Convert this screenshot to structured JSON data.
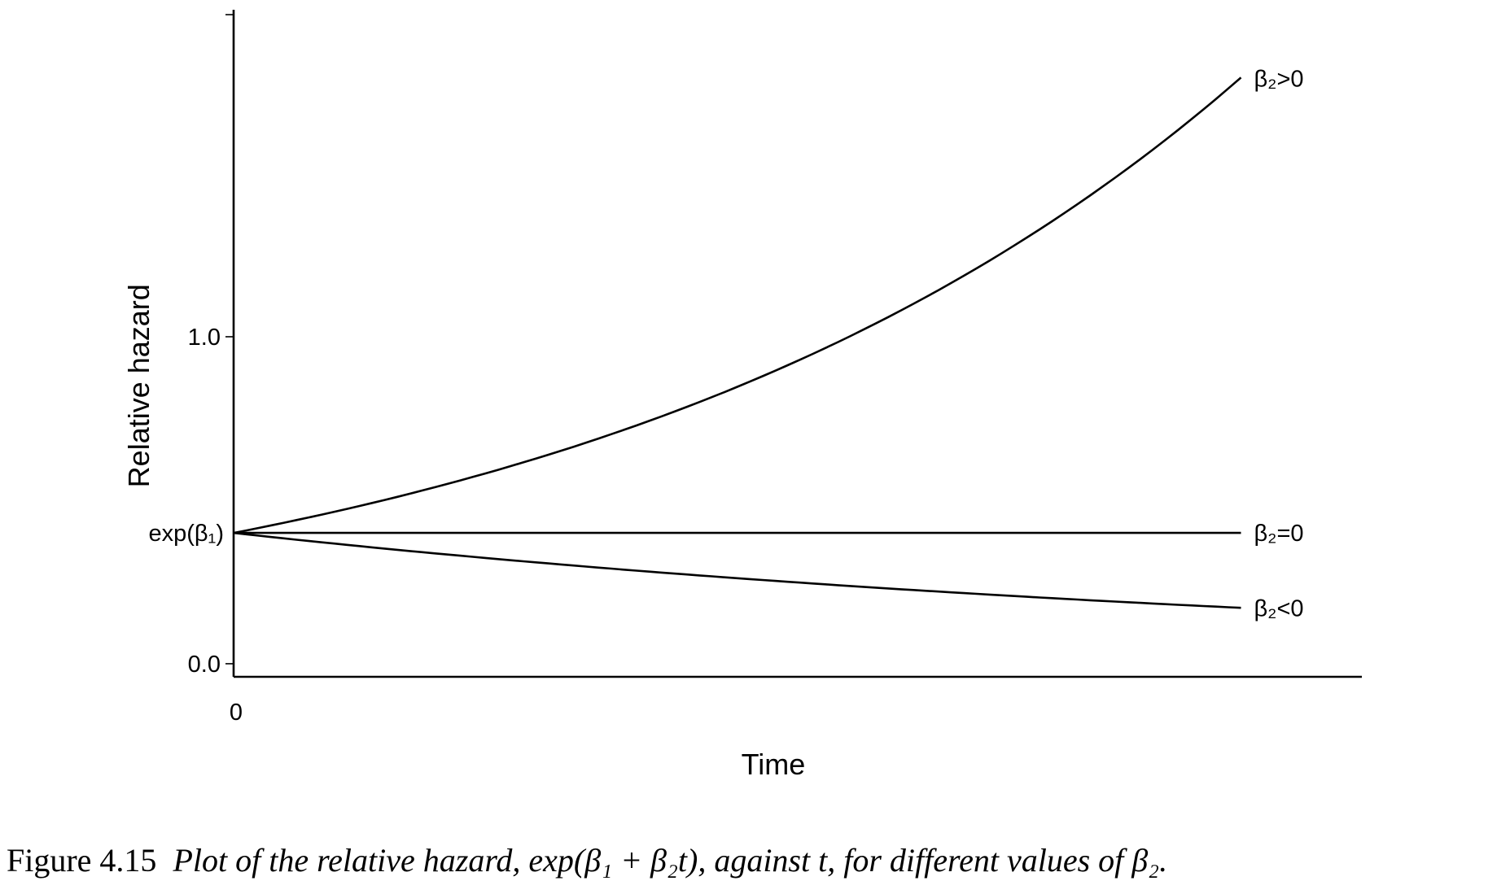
{
  "chart_data": {
    "type": "line",
    "title": "",
    "xlabel": "Time",
    "ylabel": "Relative hazard",
    "x_tick_labels": [
      {
        "value": 0,
        "label": "0"
      }
    ],
    "y_tick_labels": [
      {
        "value": 0.0,
        "label": "0.0"
      },
      {
        "value": 0.4,
        "label": "exp(β₁)"
      },
      {
        "value": 1.0,
        "label": "1.0"
      }
    ],
    "xlim": [
      0,
      1.12
    ],
    "ylim": [
      -0.04,
      2.0
    ],
    "grid": false,
    "legend": "none",
    "series": [
      {
        "label": "β₂>0",
        "beta1_level": 0.4,
        "beta2": 1.5,
        "x": [
          0,
          0.1,
          0.2,
          0.3,
          0.4,
          0.5,
          0.6,
          0.7,
          0.8,
          0.9,
          1.0
        ],
        "y": [
          0.4,
          0.46,
          0.54,
          0.63,
          0.73,
          0.85,
          0.98,
          1.14,
          1.33,
          1.54,
          1.79
        ]
      },
      {
        "label": "β₂=0",
        "beta1_level": 0.4,
        "beta2": 0,
        "x": [
          0,
          1.0
        ],
        "y": [
          0.4,
          0.4
        ]
      },
      {
        "label": "β₂<0",
        "beta1_level": 0.4,
        "beta2": -0.85,
        "x": [
          0,
          0.1,
          0.2,
          0.3,
          0.4,
          0.5,
          0.6,
          0.7,
          0.8,
          0.9,
          1.0
        ],
        "y": [
          0.4,
          0.37,
          0.34,
          0.31,
          0.28,
          0.26,
          0.24,
          0.22,
          0.2,
          0.19,
          0.17
        ]
      }
    ]
  },
  "caption": {
    "number": "Figure 4.15",
    "text": "Plot of the relative hazard, exp(β₁ + β₂t), against t, for different values of β₂."
  }
}
